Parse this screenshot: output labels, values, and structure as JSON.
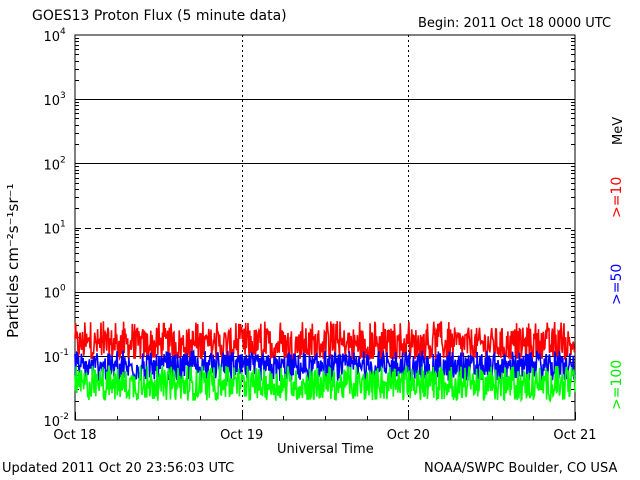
{
  "chart_data": {
    "type": "line",
    "title": "GOES13 Proton Flux (5 minute data)",
    "begin_label": "Begin: 2011 Oct 18 0000 UTC",
    "xlabel": "Universal Time",
    "ylabel": "Particles cm⁻²s⁻¹sr⁻¹",
    "y_scale": "log",
    "ylim": [
      0.01,
      10000
    ],
    "y_ticks": [
      {
        "base": "10",
        "exp": "-2"
      },
      {
        "base": "10",
        "exp": "-1"
      },
      {
        "base": "10",
        "exp": "0"
      },
      {
        "base": "10",
        "exp": "1"
      },
      {
        "base": "10",
        "exp": "2"
      },
      {
        "base": "10",
        "exp": "3"
      },
      {
        "base": "10",
        "exp": "4"
      }
    ],
    "x_ticks": [
      "Oct 18",
      "Oct 19",
      "Oct 20",
      "Oct 21"
    ],
    "xlim_days": [
      0,
      3
    ],
    "dashed_level": 10,
    "unit": "MeV",
    "series": [
      {
        "name": ">=10",
        "color": "#ff0000",
        "typical_flux": 0.15,
        "range": [
          0.09,
          0.35
        ]
      },
      {
        "name": ">=50",
        "color": "#0000ff",
        "typical_flux": 0.065,
        "range": [
          0.04,
          0.12
        ]
      },
      {
        "name": ">=100",
        "color": "#00ff00",
        "typical_flux": 0.035,
        "range": [
          0.02,
          0.07
        ]
      }
    ],
    "grid": true
  },
  "footer": {
    "updated": "Updated 2011 Oct 20 23:56:03 UTC",
    "source": "NOAA/SWPC Boulder, CO USA"
  }
}
